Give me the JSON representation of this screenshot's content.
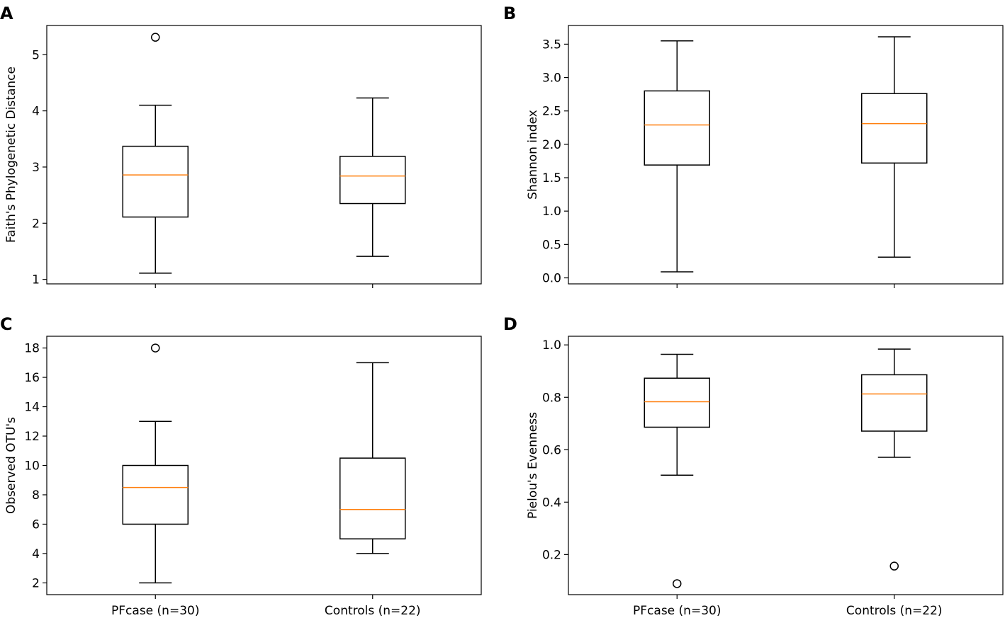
{
  "chart_data": [
    {
      "panel": "A",
      "type": "boxplot",
      "ylabel": "Faith's Phylogenetic Distance",
      "categories": [
        "PFcase (n=30)",
        "Controls (n=22)"
      ],
      "show_xticklabels": false,
      "ylim": [
        0.92,
        5.52
      ],
      "yticks": [
        1,
        2,
        3,
        4,
        5
      ],
      "ytick_labels": [
        "1",
        "2",
        "3",
        "4",
        "5"
      ],
      "boxes": [
        {
          "whislo": 1.11,
          "q1": 2.11,
          "med": 2.86,
          "q3": 3.37,
          "whishi": 4.1,
          "fliers": [
            5.31
          ]
        },
        {
          "whislo": 1.41,
          "q1": 2.35,
          "med": 2.84,
          "q3": 3.19,
          "whishi": 4.23,
          "fliers": []
        }
      ]
    },
    {
      "panel": "B",
      "type": "boxplot",
      "ylabel": "Shannon index",
      "categories": [
        "PFcase (n=30)",
        "Controls (n=22)"
      ],
      "show_xticklabels": false,
      "ylim": [
        -0.09,
        3.78
      ],
      "yticks": [
        0.0,
        0.5,
        1.0,
        1.5,
        2.0,
        2.5,
        3.0,
        3.5
      ],
      "ytick_labels": [
        "0.0",
        "0.5",
        "1.0",
        "1.5",
        "2.0",
        "2.5",
        "3.0",
        "3.5"
      ],
      "boxes": [
        {
          "whislo": 0.09,
          "q1": 1.69,
          "med": 2.29,
          "q3": 2.8,
          "whishi": 3.55,
          "fliers": []
        },
        {
          "whislo": 0.31,
          "q1": 1.72,
          "med": 2.31,
          "q3": 2.76,
          "whishi": 3.61,
          "fliers": []
        }
      ]
    },
    {
      "panel": "C",
      "type": "boxplot",
      "ylabel": "Observed OTU's",
      "categories": [
        "PFcase (n=30)",
        "Controls (n=22)"
      ],
      "show_xticklabels": true,
      "ylim": [
        1.2,
        18.8
      ],
      "yticks": [
        2,
        4,
        6,
        8,
        10,
        12,
        14,
        16,
        18
      ],
      "ytick_labels": [
        "2",
        "4",
        "6",
        "8",
        "10",
        "12",
        "14",
        "16",
        "18"
      ],
      "boxes": [
        {
          "whislo": 2,
          "q1": 6,
          "med": 8.5,
          "q3": 10,
          "whishi": 13,
          "fliers": [
            18
          ]
        },
        {
          "whislo": 4,
          "q1": 5,
          "med": 7,
          "q3": 10.5,
          "whishi": 17,
          "fliers": []
        }
      ]
    },
    {
      "panel": "D",
      "type": "boxplot",
      "ylabel": "Pielou's Evenness",
      "categories": [
        "PFcase (n=30)",
        "Controls (n=22)"
      ],
      "show_xticklabels": true,
      "ylim": [
        0.047,
        1.033
      ],
      "yticks": [
        0.2,
        0.4,
        0.6,
        0.8,
        1.0
      ],
      "ytick_labels": [
        "0.2",
        "0.4",
        "0.6",
        "0.8",
        "1.0"
      ],
      "boxes": [
        {
          "whislo": 0.503,
          "q1": 0.686,
          "med": 0.783,
          "q3": 0.873,
          "whishi": 0.964,
          "fliers": [
            0.089
          ]
        },
        {
          "whislo": 0.571,
          "q1": 0.671,
          "med": 0.813,
          "q3": 0.886,
          "whishi": 0.984,
          "fliers": [
            0.156
          ]
        }
      ]
    }
  ],
  "colors": {
    "box": "#000000",
    "median": "#ff7f0e"
  }
}
